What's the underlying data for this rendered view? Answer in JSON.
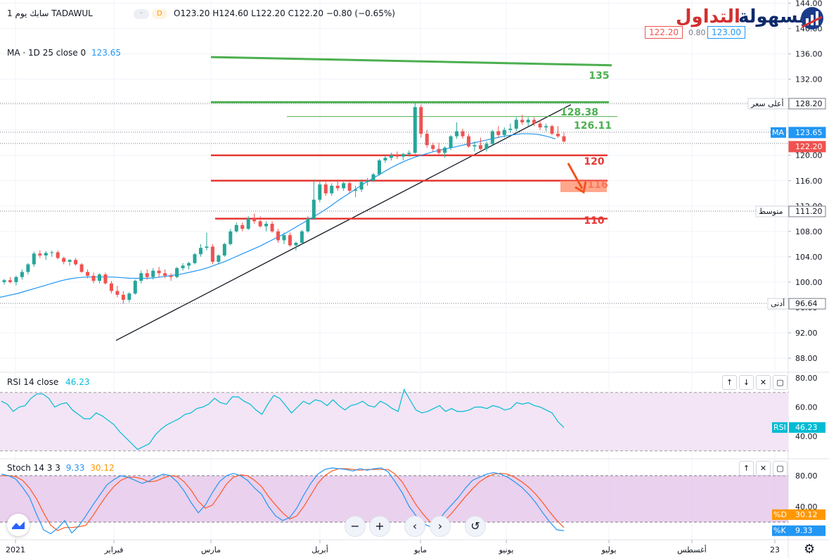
{
  "header": {
    "symbol": "سابك",
    "interval": "يوم 1",
    "exchange": "TADAWUL",
    "badge": "D",
    "o": "O123.20",
    "h": "H124.60",
    "l": "L122.20",
    "c": "C122.20",
    "chg": "−0.80 (−0.65%)",
    "ma_label": "MA · 1D 25 close 0",
    "ma_value": "123.65"
  },
  "logo": {
    "part_red": "التداول",
    "part_blue": "بسهولة"
  },
  "quote": {
    "bid": "122.20",
    "spread": "0.80",
    "ask": "123.00"
  },
  "colors": {
    "up": "#26a69a",
    "down": "#ef5350",
    "green_line": "#4caf50",
    "red_line": "#e53935",
    "ma": "#2196f3",
    "rsi": "#00bcd4",
    "stoch_k": "#2196f3",
    "stoch_d": "#ff5722"
  },
  "chart_data": [
    {
      "type": "candlestick",
      "y_axis_ticks": [
        "144.00",
        "140.00",
        "136.00",
        "132.00",
        "128.00",
        "124.00",
        "120.00",
        "116.00",
        "112.00",
        "108.00",
        "104.00",
        "100.00",
        "96.00",
        "92.00",
        "88.00"
      ],
      "ylim": [
        86.5,
        145
      ],
      "x_labels": [
        "2021",
        "فبراير",
        "مارس",
        "أبريل",
        "مايو",
        "يونيو",
        "يوليو",
        "أغسطس",
        "23"
      ],
      "levels": [
        {
          "value": 135,
          "label": "135",
          "color": "green"
        },
        {
          "value": 128.38,
          "label": "128.38",
          "color": "green"
        },
        {
          "value": 126.11,
          "label": "126.11",
          "color": "green"
        },
        {
          "value": 120,
          "label": "120",
          "color": "red"
        },
        {
          "value": 116,
          "label": "116",
          "color": "red"
        },
        {
          "value": 110,
          "label": "110",
          "color": "red"
        }
      ],
      "axis_markers": [
        {
          "label": "أعلى سعر",
          "value": "128.20"
        },
        {
          "label": "MA",
          "value": "123.65"
        },
        {
          "label": "",
          "value": "122.20"
        },
        {
          "label": "متوسط",
          "value": "111.20"
        },
        {
          "label": "أدنى",
          "value": "96.64"
        }
      ],
      "candles": [
        [
          100.0,
          100.5,
          99.6,
          100.3
        ],
        [
          100.3,
          100.8,
          99.8,
          100.0
        ],
        [
          100.0,
          101.0,
          99.5,
          100.8
        ],
        [
          100.8,
          102.0,
          100.4,
          101.6
        ],
        [
          101.6,
          103.0,
          101.2,
          102.8
        ],
        [
          102.8,
          104.8,
          102.4,
          104.5
        ],
        [
          104.5,
          105.0,
          103.8,
          104.2
        ],
        [
          104.2,
          104.9,
          103.5,
          104.6
        ],
        [
          104.6,
          105.0,
          104.0,
          104.7
        ],
        [
          104.7,
          105.0,
          103.6,
          103.8
        ],
        [
          103.8,
          104.0,
          102.8,
          103.2
        ],
        [
          103.2,
          103.6,
          102.6,
          103.5
        ],
        [
          103.5,
          103.8,
          102.6,
          102.8
        ],
        [
          102.8,
          103.0,
          101.5,
          101.6
        ],
        [
          101.6,
          102.0,
          100.6,
          101.0
        ],
        [
          101.0,
          101.5,
          99.8,
          100.2
        ],
        [
          100.2,
          101.4,
          99.8,
          101.2
        ],
        [
          101.2,
          101.5,
          99.6,
          99.8
        ],
        [
          99.8,
          100.2,
          98.2,
          98.6
        ],
        [
          98.6,
          99.4,
          97.6,
          98.0
        ],
        [
          98.0,
          98.6,
          96.6,
          97.2
        ],
        [
          97.2,
          98.4,
          96.8,
          98.2
        ],
        [
          98.2,
          100.4,
          98.0,
          100.2
        ],
        [
          100.2,
          101.8,
          99.8,
          101.4
        ],
        [
          101.4,
          102.0,
          100.4,
          100.8
        ],
        [
          100.8,
          102.2,
          100.4,
          101.8
        ],
        [
          101.8,
          102.4,
          100.8,
          101.4
        ],
        [
          101.4,
          102.0,
          100.6,
          101.0
        ],
        [
          101.0,
          101.4,
          100.2,
          100.8
        ],
        [
          100.8,
          102.4,
          100.6,
          102.2
        ],
        [
          102.2,
          103.0,
          101.8,
          102.6
        ],
        [
          102.6,
          103.2,
          102.0,
          103.0
        ],
        [
          103.0,
          104.6,
          102.8,
          104.4
        ],
        [
          104.4,
          106.0,
          104.0,
          105.4
        ],
        [
          105.4,
          107.8,
          105.0,
          105.6
        ],
        [
          105.6,
          106.0,
          102.8,
          103.2
        ],
        [
          103.2,
          104.4,
          102.8,
          104.2
        ],
        [
          104.2,
          106.2,
          104.0,
          106.0
        ],
        [
          106.0,
          108.4,
          105.8,
          108.0
        ],
        [
          108.0,
          109.4,
          107.8,
          109.0
        ],
        [
          109.0,
          109.4,
          108.0,
          108.4
        ],
        [
          108.4,
          110.4,
          108.2,
          110.0
        ],
        [
          110.0,
          110.8,
          109.2,
          109.6
        ],
        [
          109.6,
          110.4,
          108.6,
          108.8
        ],
        [
          108.8,
          109.6,
          108.0,
          109.2
        ],
        [
          109.2,
          109.6,
          107.8,
          108.0
        ],
        [
          108.0,
          108.4,
          106.2,
          106.6
        ],
        [
          106.6,
          107.8,
          106.0,
          107.4
        ],
        [
          107.4,
          107.8,
          105.6,
          105.8
        ],
        [
          105.8,
          106.4,
          105.0,
          106.2
        ],
        [
          106.2,
          108.2,
          106.0,
          108.0
        ],
        [
          108.0,
          110.4,
          107.8,
          110.0
        ],
        [
          110.0,
          116.2,
          109.8,
          113.0
        ],
        [
          113.0,
          116.0,
          112.6,
          115.4
        ],
        [
          115.4,
          115.8,
          113.6,
          114.0
        ],
        [
          114.0,
          115.6,
          113.6,
          115.2
        ],
        [
          115.2,
          116.2,
          114.4,
          114.8
        ],
        [
          114.8,
          116.0,
          114.4,
          115.6
        ],
        [
          115.6,
          116.0,
          114.0,
          114.4
        ],
        [
          114.4,
          115.2,
          113.4,
          114.6
        ],
        [
          114.6,
          116.2,
          114.2,
          115.8
        ],
        [
          115.8,
          116.4,
          115.2,
          116.0
        ],
        [
          116.0,
          117.2,
          115.8,
          117.0
        ],
        [
          117.0,
          119.4,
          116.8,
          119.2
        ],
        [
          119.2,
          120.0,
          118.8,
          119.6
        ],
        [
          119.6,
          120.4,
          119.2,
          120.0
        ],
        [
          120.0,
          120.6,
          119.4,
          119.8
        ],
        [
          119.8,
          120.4,
          119.2,
          120.2
        ],
        [
          120.2,
          120.8,
          119.8,
          120.4
        ],
        [
          120.4,
          128.2,
          120.2,
          127.6
        ],
        [
          127.6,
          128.0,
          122.8,
          123.4
        ],
        [
          123.4,
          124.0,
          121.2,
          121.6
        ],
        [
          121.6,
          122.0,
          120.6,
          121.0
        ],
        [
          121.0,
          122.0,
          120.0,
          120.4
        ],
        [
          120.4,
          121.4,
          119.6,
          121.2
        ],
        [
          121.2,
          123.2,
          120.8,
          123.0
        ],
        [
          123.0,
          125.2,
          122.6,
          123.8
        ],
        [
          123.8,
          124.2,
          122.6,
          123.0
        ],
        [
          123.0,
          123.4,
          121.2,
          121.4
        ],
        [
          121.4,
          122.2,
          120.6,
          121.6
        ],
        [
          121.6,
          122.8,
          120.8,
          121.0
        ],
        [
          121.0,
          122.2,
          120.6,
          121.8
        ],
        [
          121.8,
          124.0,
          121.6,
          123.8
        ],
        [
          123.8,
          124.6,
          122.8,
          123.2
        ],
        [
          123.2,
          124.4,
          122.8,
          124.0
        ],
        [
          124.0,
          125.0,
          123.6,
          124.2
        ],
        [
          124.2,
          126.0,
          123.8,
          125.6
        ],
        [
          125.6,
          126.4,
          124.8,
          125.2
        ],
        [
          125.2,
          126.0,
          124.6,
          125.6
        ],
        [
          125.6,
          126.0,
          124.6,
          125.0
        ],
        [
          125.0,
          125.6,
          124.0,
          124.4
        ],
        [
          124.4,
          125.0,
          123.8,
          124.6
        ],
        [
          124.6,
          124.8,
          123.2,
          123.4
        ],
        [
          123.4,
          124.6,
          122.8,
          123.0
        ],
        [
          123.0,
          123.6,
          122.0,
          122.2
        ]
      ],
      "ma25": [
        97.6,
        97.9,
        98.2,
        98.6,
        99.0,
        99.4,
        99.8,
        100.2,
        100.5,
        100.7,
        100.8,
        100.8,
        100.8,
        100.8,
        100.7,
        100.6,
        100.6,
        100.6,
        100.7,
        100.9,
        101.1,
        101.3,
        101.6,
        101.9,
        102.3,
        102.8,
        103.3,
        103.9,
        104.5,
        105.1,
        105.7,
        106.4,
        107.1,
        107.8,
        108.6,
        109.4,
        110.2,
        111.0,
        111.9,
        112.9,
        113.8,
        114.7,
        115.6,
        116.4,
        117.2,
        118.0,
        118.7,
        119.3,
        119.8,
        120.2,
        120.6,
        120.9,
        121.2,
        121.5,
        121.8,
        122.1,
        122.4,
        122.7,
        123.0,
        123.2,
        123.4,
        123.4,
        123.3,
        123.0,
        122.6
      ],
      "trendline": [
        [
          88,
          90.8
        ],
        [
          812,
          128.0
        ]
      ],
      "projection_box": [
        114.2,
        116.0
      ]
    },
    {
      "type": "line",
      "title": "RSI 14 close",
      "value": "46.23",
      "ticks": [
        "80.00",
        "60.00",
        "40.00"
      ],
      "band": [
        30,
        70
      ],
      "ylim": [
        23,
        87
      ],
      "values": [
        64,
        62,
        57,
        60,
        61,
        66,
        69,
        69,
        66,
        60,
        62,
        63,
        58,
        55,
        52,
        52,
        56,
        54,
        51,
        48,
        43,
        39,
        35,
        31,
        33,
        35,
        41,
        45,
        48,
        50,
        52,
        55,
        56,
        59,
        60,
        62,
        66,
        63,
        62,
        67,
        67,
        64,
        62,
        58,
        55,
        62,
        68,
        66,
        61,
        56,
        60,
        64,
        62,
        65,
        64,
        61,
        65,
        61,
        58,
        61,
        62,
        64,
        61,
        60,
        64,
        62,
        59,
        57,
        72,
        65,
        58,
        56,
        57,
        59,
        61,
        57,
        59,
        57,
        57,
        58,
        60,
        60,
        59,
        61,
        60,
        58,
        59,
        63,
        62,
        63,
        61,
        60,
        58,
        56,
        50,
        46
      ]
    },
    {
      "type": "line",
      "title": "Stoch 14 3 3",
      "k_value": "9.33",
      "d_value": "30.12",
      "ticks": [
        "80.00",
        "40.00"
      ],
      "band": [
        20,
        80
      ],
      "ylim": [
        5,
        99
      ],
      "k": [
        82,
        80,
        76,
        65,
        52,
        30,
        10,
        5,
        12,
        22,
        6,
        15,
        28,
        42,
        55,
        68,
        75,
        80,
        78,
        74,
        70,
        73,
        78,
        82,
        80,
        72,
        60,
        45,
        32,
        42,
        58,
        72,
        80,
        83,
        80,
        74,
        64,
        56,
        40,
        28,
        22,
        26,
        38,
        55,
        70,
        82,
        88,
        90,
        89,
        88,
        86,
        89,
        87,
        89,
        90,
        85,
        72,
        58,
        40,
        28,
        18,
        14,
        20,
        32,
        42,
        52,
        64,
        74,
        78,
        82,
        84,
        82,
        78,
        72,
        65,
        56,
        45,
        32,
        20,
        10,
        9
      ],
      "d": [
        80,
        80,
        79,
        74,
        64,
        50,
        32,
        16,
        9,
        13,
        13,
        14,
        16,
        28,
        42,
        55,
        66,
        74,
        78,
        78,
        76,
        72,
        73,
        77,
        80,
        79,
        72,
        61,
        47,
        38,
        42,
        55,
        69,
        78,
        81,
        80,
        74,
        66,
        53,
        42,
        32,
        24,
        28,
        40,
        55,
        70,
        80,
        86,
        89,
        89,
        88,
        87,
        88,
        88,
        88,
        88,
        82,
        72,
        57,
        42,
        30,
        20,
        17,
        22,
        31,
        42,
        53,
        63,
        72,
        78,
        82,
        83,
        82,
        78,
        72,
        65,
        56,
        45,
        33,
        22,
        13
      ]
    }
  ]
}
